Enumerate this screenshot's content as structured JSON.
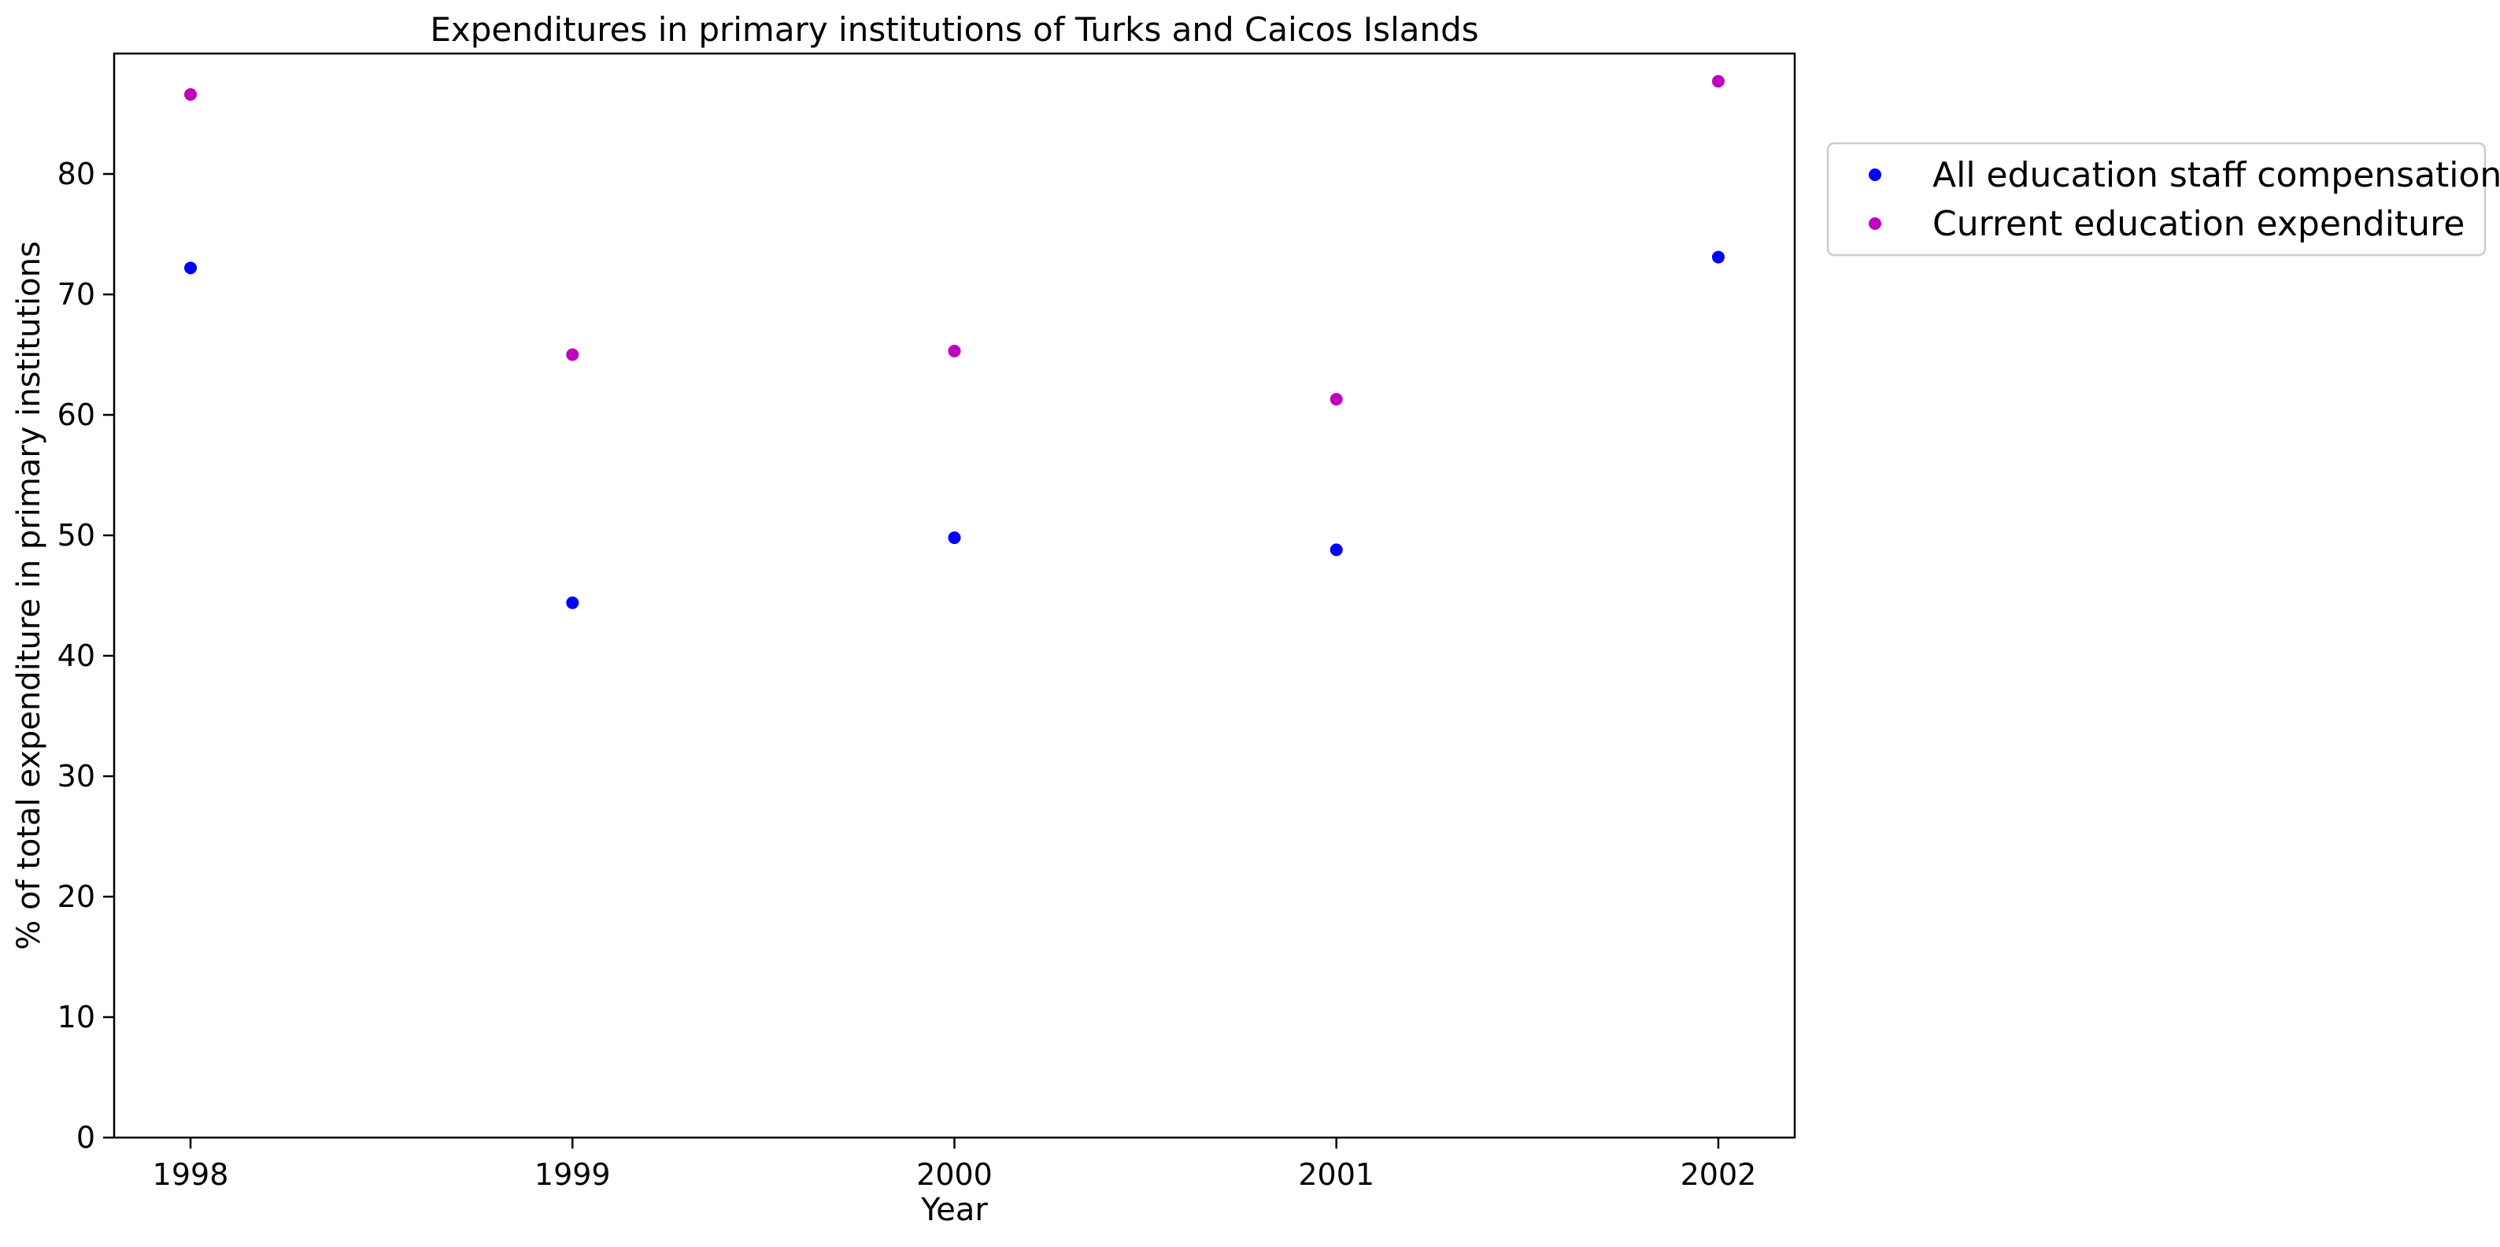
{
  "chart_data": {
    "type": "scatter",
    "title": "Expenditures in primary institutions of Turks and Caicos Islands",
    "xlabel": "Year",
    "ylabel": "% of total expenditure in primary institutions",
    "x": [
      "1998",
      "1999",
      "2000",
      "2001",
      "2002"
    ],
    "x_range": [
      1997.8,
      2002.2
    ],
    "ylim": [
      0,
      90
    ],
    "yticks": [
      0,
      10,
      20,
      30,
      40,
      50,
      60,
      70,
      80
    ],
    "grid": false,
    "legend_position": "outside right, top",
    "series": [
      {
        "name": "All education staff compensation",
        "color": "#0000ff",
        "values": [
          72.2,
          44.4,
          49.8,
          48.8,
          73.1
        ]
      },
      {
        "name": "Current education expenditure",
        "color": "#bf00bf",
        "values": [
          86.6,
          65.0,
          65.3,
          61.3,
          87.7
        ]
      }
    ]
  }
}
